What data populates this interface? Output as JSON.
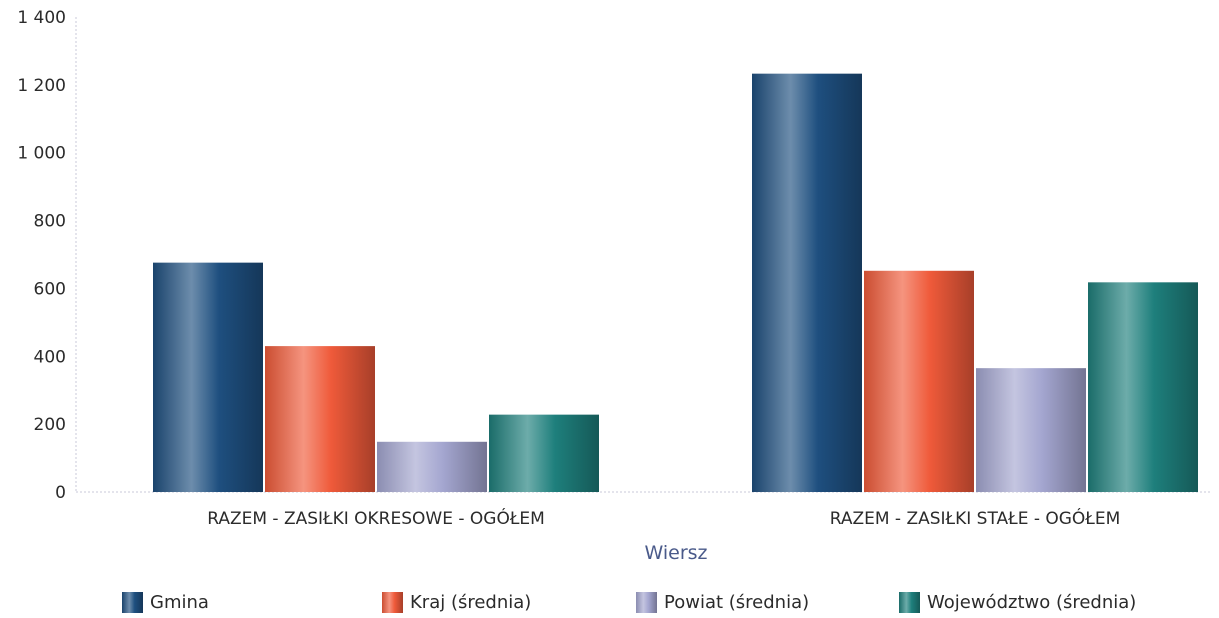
{
  "chart_data": {
    "type": "bar",
    "categories": [
      "RAZEM -  ZASIŁKI OKRESOWE - OGÓŁEM",
      "RAZEM -  ZASIŁKI STAŁE - OGÓŁEM"
    ],
    "series": [
      {
        "name": "Gmina",
        "values": [
          676,
          1233
        ],
        "color": "#1e4f7f"
      },
      {
        "name": "Kraj (średnia)",
        "values": [
          430,
          652
        ],
        "color": "#ef5a3a"
      },
      {
        "name": "Powiat (średnia)",
        "values": [
          148,
          365
        ],
        "color": "#a4a6d0"
      },
      {
        "name": "Województwo (średnia)",
        "values": [
          228,
          618
        ],
        "color": "#1e7f7c"
      }
    ],
    "y_ticks": [
      "0",
      "200",
      "400",
      "600",
      "800",
      "1 000",
      "1 200",
      "1 400"
    ],
    "ylim": [
      0,
      1400
    ],
    "xlabel": "Wiersz",
    "ylabel": "",
    "legend_position": "bottom",
    "grid": false
  }
}
